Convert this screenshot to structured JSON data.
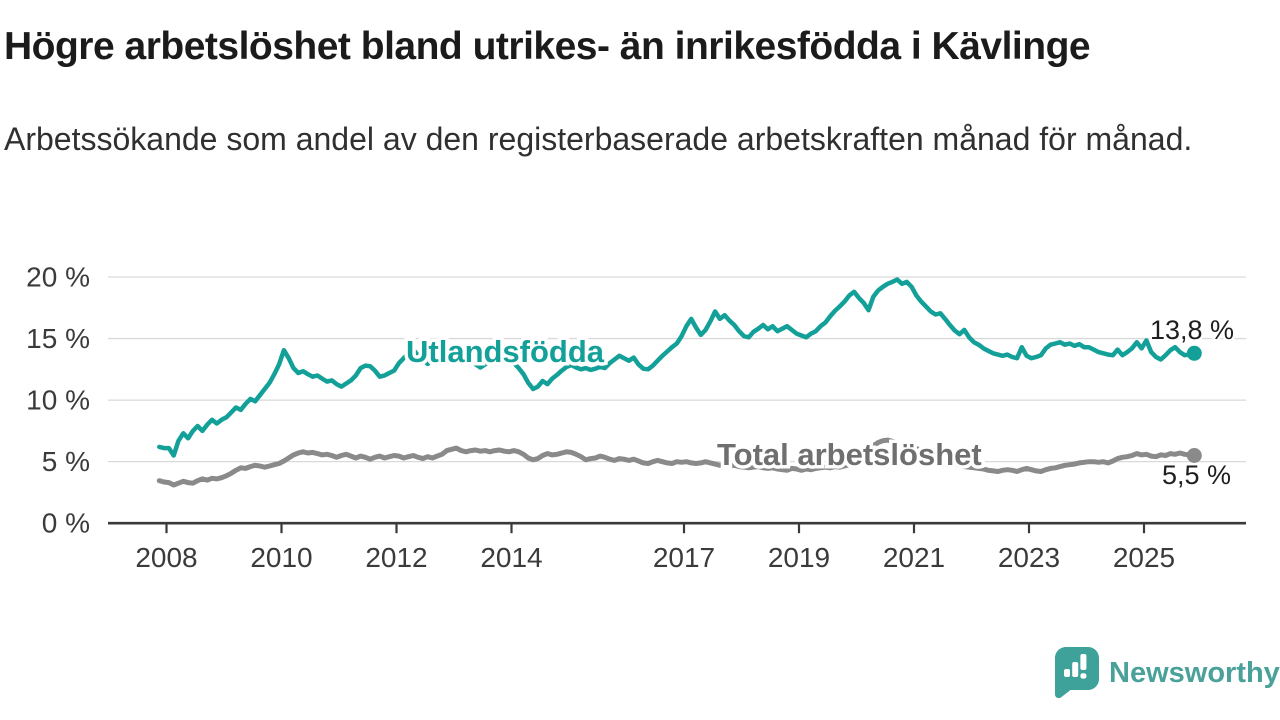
{
  "header": {
    "title": "Högre arbetslöshet bland utrikes- än inrikesfödda i Kävlinge",
    "subtitle": "Arbetssökande som andel av den registerbaserade arbetskraften månad för månad."
  },
  "chart_data": {
    "type": "line",
    "unit": "%",
    "title": "Högre arbetslöshet bland utrikes- än inrikesfödda i Kävlinge",
    "x_axis": {
      "start_year_month": "2007-11",
      "step": "1 month",
      "tick_years": [
        "2008",
        "2010",
        "2012",
        "2014",
        "2017",
        "2019",
        "2021",
        "2023",
        "2025"
      ]
    },
    "y_axis": {
      "ticks": [
        0,
        5,
        10,
        15,
        20
      ],
      "tick_labels": [
        "0 %",
        "5 %",
        "10 %",
        "15 %",
        "20 %"
      ],
      "range": [
        0,
        20
      ],
      "grid": true
    },
    "series": [
      {
        "name": "Utlandsfödda",
        "color": "#13a099",
        "end_label": "13,8 %",
        "end_value": 13.8,
        "values": [
          6.2,
          6.1,
          6.1,
          5.5,
          6.7,
          7.3,
          6.9,
          7.5,
          7.9,
          7.5,
          8.0,
          8.4,
          8.1,
          8.4,
          8.6,
          9.0,
          9.4,
          9.2,
          9.7,
          10.1,
          9.9,
          10.4,
          10.9,
          11.4,
          12.1,
          12.9,
          14.05,
          13.4,
          12.6,
          12.2,
          12.35,
          12.1,
          11.9,
          12.0,
          11.75,
          11.5,
          11.6,
          11.3,
          11.1,
          11.35,
          11.6,
          12.0,
          12.6,
          12.8,
          12.75,
          12.4,
          11.9,
          12.0,
          12.2,
          12.4,
          13.0,
          13.4,
          13.8,
          14.1,
          13.6,
          13.3,
          12.95,
          13.2,
          13.5,
          13.3,
          13.55,
          13.8,
          14.0,
          14.2,
          13.8,
          13.3,
          12.9,
          12.65,
          12.9,
          13.2,
          13.45,
          13.3,
          13.1,
          13.2,
          13.0,
          12.6,
          12.1,
          11.4,
          10.9,
          11.1,
          11.55,
          11.3,
          11.75,
          12.05,
          12.4,
          12.7,
          12.85,
          12.65,
          12.5,
          12.6,
          12.45,
          12.55,
          12.7,
          12.6,
          13.0,
          13.3,
          13.6,
          13.4,
          13.2,
          13.45,
          12.9,
          12.55,
          12.5,
          12.8,
          13.2,
          13.6,
          13.95,
          14.3,
          14.6,
          15.2,
          16.0,
          16.6,
          15.9,
          15.3,
          15.7,
          16.4,
          17.2,
          16.6,
          16.9,
          16.45,
          16.1,
          15.6,
          15.2,
          15.1,
          15.55,
          15.8,
          16.1,
          15.75,
          16.0,
          15.6,
          15.8,
          16.0,
          15.7,
          15.4,
          15.25,
          15.1,
          15.4,
          15.6,
          16.0,
          16.3,
          16.8,
          17.25,
          17.6,
          18.0,
          18.5,
          18.8,
          18.3,
          17.9,
          17.3,
          18.4,
          18.9,
          19.2,
          19.45,
          19.6,
          19.8,
          19.45,
          19.6,
          19.2,
          18.5,
          18.0,
          17.6,
          17.2,
          16.95,
          17.05,
          16.6,
          16.1,
          15.65,
          15.35,
          15.7,
          15.1,
          14.7,
          14.5,
          14.2,
          14.0,
          13.8,
          13.7,
          13.6,
          13.7,
          13.5,
          13.4,
          14.3,
          13.6,
          13.4,
          13.5,
          13.65,
          14.2,
          14.5,
          14.6,
          14.7,
          14.5,
          14.6,
          14.4,
          14.55,
          14.3,
          14.3,
          14.1,
          13.9,
          13.8,
          13.7,
          13.65,
          14.1,
          13.65,
          13.9,
          14.2,
          14.7,
          14.2,
          14.85,
          13.9,
          13.5,
          13.3,
          13.65,
          14.05,
          14.3,
          13.9,
          13.65,
          13.7,
          13.8
        ]
      },
      {
        "name": "Total arbetslöshet",
        "color": "#8a8a8a",
        "end_label": "5,5 %",
        "end_value": 5.5,
        "values": [
          3.45,
          3.35,
          3.3,
          3.1,
          3.25,
          3.4,
          3.3,
          3.25,
          3.45,
          3.6,
          3.5,
          3.65,
          3.6,
          3.7,
          3.85,
          4.05,
          4.3,
          4.5,
          4.45,
          4.6,
          4.7,
          4.65,
          4.55,
          4.65,
          4.75,
          4.85,
          5.05,
          5.3,
          5.55,
          5.7,
          5.8,
          5.7,
          5.75,
          5.65,
          5.55,
          5.6,
          5.5,
          5.35,
          5.5,
          5.6,
          5.45,
          5.3,
          5.45,
          5.35,
          5.2,
          5.35,
          5.45,
          5.3,
          5.4,
          5.5,
          5.45,
          5.3,
          5.4,
          5.5,
          5.35,
          5.25,
          5.4,
          5.3,
          5.45,
          5.6,
          5.9,
          6.0,
          6.1,
          5.9,
          5.8,
          5.9,
          5.95,
          5.85,
          5.9,
          5.8,
          5.9,
          5.95,
          5.85,
          5.8,
          5.9,
          5.8,
          5.6,
          5.3,
          5.15,
          5.25,
          5.5,
          5.65,
          5.55,
          5.6,
          5.7,
          5.8,
          5.75,
          5.6,
          5.4,
          5.15,
          5.25,
          5.3,
          5.45,
          5.35,
          5.2,
          5.1,
          5.25,
          5.2,
          5.1,
          5.2,
          5.05,
          4.9,
          4.85,
          5.0,
          5.1,
          5.0,
          4.9,
          4.85,
          5.0,
          4.95,
          5.0,
          4.9,
          4.85,
          4.9,
          5.0,
          4.9,
          4.8,
          4.7,
          4.75,
          4.65,
          4.7,
          4.6,
          4.55,
          4.5,
          4.55,
          4.6,
          4.5,
          4.45,
          4.5,
          4.4,
          4.35,
          4.3,
          4.45,
          4.4,
          4.3,
          4.4,
          4.35,
          4.45,
          4.5,
          4.55,
          4.5,
          4.6,
          4.55,
          4.65,
          4.75,
          4.9,
          5.1,
          5.3,
          5.7,
          6.3,
          6.55,
          6.7,
          6.75,
          6.65,
          6.55,
          6.4,
          6.3,
          6.2,
          6.05,
          5.95,
          5.8,
          5.6,
          5.4,
          5.25,
          5.1,
          4.95,
          4.8,
          4.7,
          4.6,
          4.55,
          4.5,
          4.45,
          4.4,
          4.3,
          4.25,
          4.2,
          4.3,
          4.35,
          4.3,
          4.2,
          4.35,
          4.45,
          4.35,
          4.25,
          4.2,
          4.35,
          4.45,
          4.5,
          4.6,
          4.7,
          4.75,
          4.8,
          4.9,
          4.95,
          5.0,
          5.0,
          4.95,
          5.0,
          4.9,
          5.05,
          5.25,
          5.35,
          5.4,
          5.5,
          5.65,
          5.55,
          5.6,
          5.45,
          5.4,
          5.55,
          5.5,
          5.65,
          5.6,
          5.7,
          5.6,
          5.55,
          5.5
        ]
      }
    ],
    "legend_position": "inline-labels"
  },
  "branding": {
    "name": "Newsworthy",
    "bubble_color": "#3ea29a",
    "text_color": "#4aa19a"
  }
}
